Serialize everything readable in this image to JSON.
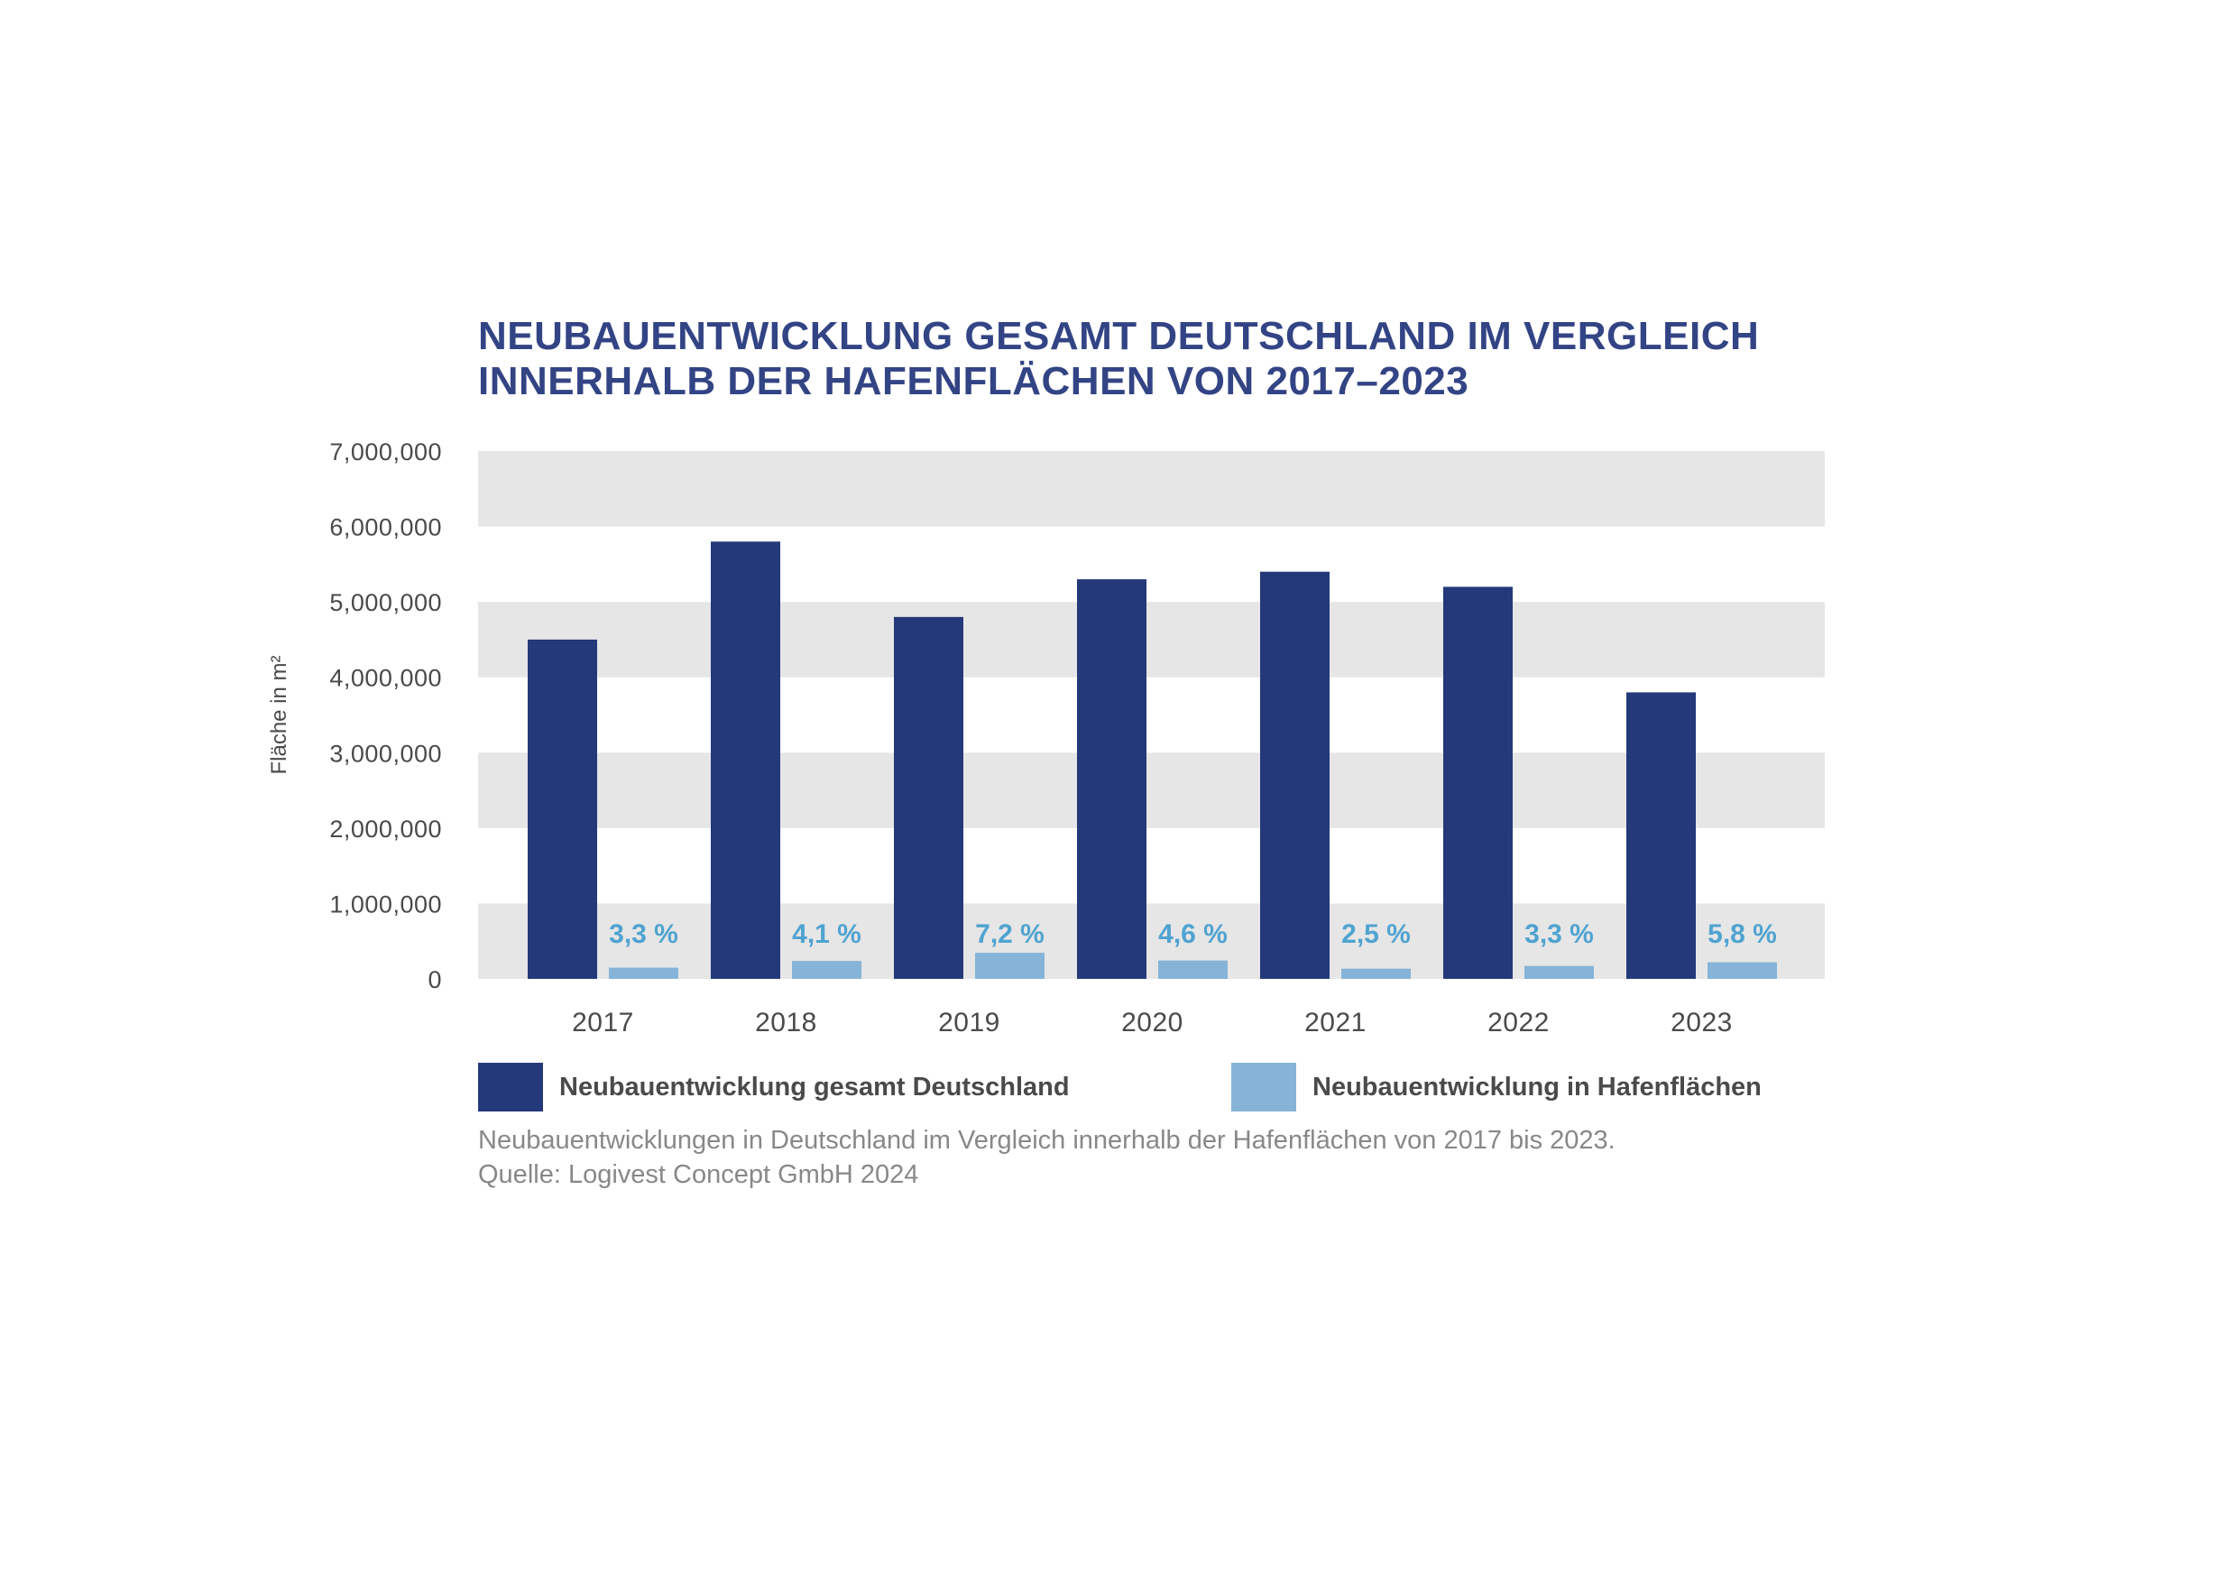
{
  "title": {
    "line1": "NEUBAUENTWICKLUNG GESAMT DEUTSCHLAND IM VERGLEICH",
    "line2": "INNERHALB DER HAFENFLÄCHEN VON 2017–2023"
  },
  "caption": {
    "line1": "Neubauentwicklungen in Deutschland im Vergleich innerhalb der Hafenflächen von 2017 bis 2023.",
    "line2": "Quelle: Logivest Concept GmbH 2024"
  },
  "legend": [
    {
      "label": "Neubauentwicklung gesamt Deutschland",
      "color": "#23397a"
    },
    {
      "label": "Neubauentwicklung in Hafenflächen",
      "color": "#86b4d8"
    }
  ],
  "colors": {
    "band": "#e6e6e6",
    "pct_label": "#4fa3d1",
    "axis_text": "#4a4a4a",
    "title": "#334485"
  },
  "chart_data": {
    "type": "bar",
    "categories": [
      "2017",
      "2018",
      "2019",
      "2020",
      "2021",
      "2022",
      "2023"
    ],
    "series": [
      {
        "name": "Neubauentwicklung gesamt Deutschland",
        "values": [
          4500000,
          5800000,
          4800000,
          5300000,
          5400000,
          5200000,
          3800000
        ]
      },
      {
        "name": "Neubauentwicklung in Hafenflächen",
        "values": [
          148500,
          237800,
          345600,
          243800,
          135000,
          171600,
          220400
        ]
      }
    ],
    "data_labels": [
      "3,3 %",
      "4,1 %",
      "7,2 %",
      "4,6 %",
      "2,5 %",
      "3,3 %",
      "5,8 %"
    ],
    "ylabel": "Fläche in m²",
    "xlabel": "",
    "ylim": [
      0,
      7000000
    ],
    "yticks": [
      0,
      1000000,
      2000000,
      3000000,
      4000000,
      5000000,
      6000000,
      7000000
    ],
    "ytick_labels": [
      "0",
      "1,000,000",
      "2,000,000",
      "3,000,000",
      "4,000,000",
      "5,000,000",
      "6,000,000",
      "7,000,000"
    ],
    "grid": "alternating horizontal bands",
    "legend_position": "bottom"
  }
}
